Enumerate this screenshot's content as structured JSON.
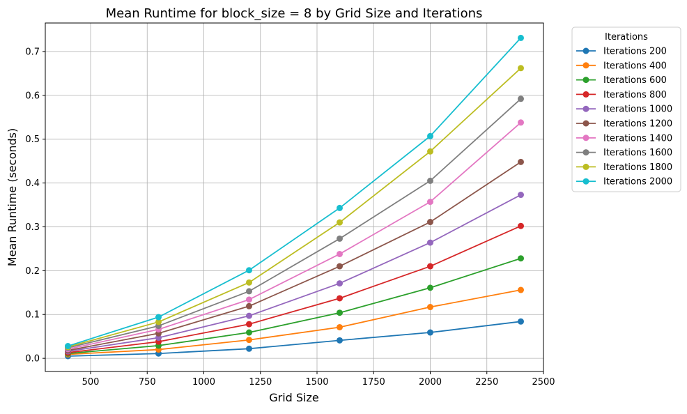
{
  "chart_data": {
    "type": "line",
    "title": "Mean Runtime for block_size = 8 by Grid Size and Iterations",
    "xlabel": "Grid Size",
    "ylabel": "Mean Runtime (seconds)",
    "xlim": [
      300,
      2500
    ],
    "ylim": [
      -0.03,
      0.765
    ],
    "x_ticks": [
      500,
      750,
      1000,
      1250,
      1500,
      1750,
      2000,
      2250,
      2500
    ],
    "y_ticks": [
      0.0,
      0.1,
      0.2,
      0.3,
      0.4,
      0.5,
      0.6,
      0.7
    ],
    "y_tick_labels": [
      "0.0",
      "0.1",
      "0.2",
      "0.3",
      "0.4",
      "0.5",
      "0.6",
      "0.7"
    ],
    "grid": true,
    "legend": {
      "title": "Iterations",
      "placement": "outside-top-right"
    },
    "x": [
      400,
      800,
      1200,
      1600,
      2000,
      2400
    ],
    "series": [
      {
        "name": "Iterations 200",
        "color": "#1f77b4",
        "values": [
          0.005,
          0.011,
          0.022,
          0.041,
          0.059,
          0.084
        ]
      },
      {
        "name": "Iterations 400",
        "color": "#ff7f0e",
        "values": [
          0.009,
          0.02,
          0.042,
          0.071,
          0.117,
          0.156
        ]
      },
      {
        "name": "Iterations 600",
        "color": "#2ca02c",
        "values": [
          0.011,
          0.029,
          0.059,
          0.104,
          0.161,
          0.228
        ]
      },
      {
        "name": "Iterations 800",
        "color": "#d62728",
        "values": [
          0.013,
          0.038,
          0.078,
          0.137,
          0.21,
          0.302
        ]
      },
      {
        "name": "Iterations 1000",
        "color": "#9467bd",
        "values": [
          0.016,
          0.047,
          0.097,
          0.171,
          0.264,
          0.373
        ]
      },
      {
        "name": "Iterations 1200",
        "color": "#8c564b",
        "values": [
          0.018,
          0.057,
          0.119,
          0.21,
          0.311,
          0.448
        ]
      },
      {
        "name": "Iterations 1400",
        "color": "#e377c2",
        "values": [
          0.021,
          0.066,
          0.134,
          0.238,
          0.357,
          0.538
        ]
      },
      {
        "name": "Iterations 1600",
        "color": "#7f7f7f",
        "values": [
          0.024,
          0.074,
          0.153,
          0.273,
          0.405,
          0.592
        ]
      },
      {
        "name": "Iterations 1800",
        "color": "#bcbd22",
        "values": [
          0.026,
          0.083,
          0.173,
          0.31,
          0.472,
          0.662
        ]
      },
      {
        "name": "Iterations 2000",
        "color": "#17becf",
        "values": [
          0.028,
          0.094,
          0.201,
          0.343,
          0.507,
          0.731
        ]
      }
    ]
  }
}
